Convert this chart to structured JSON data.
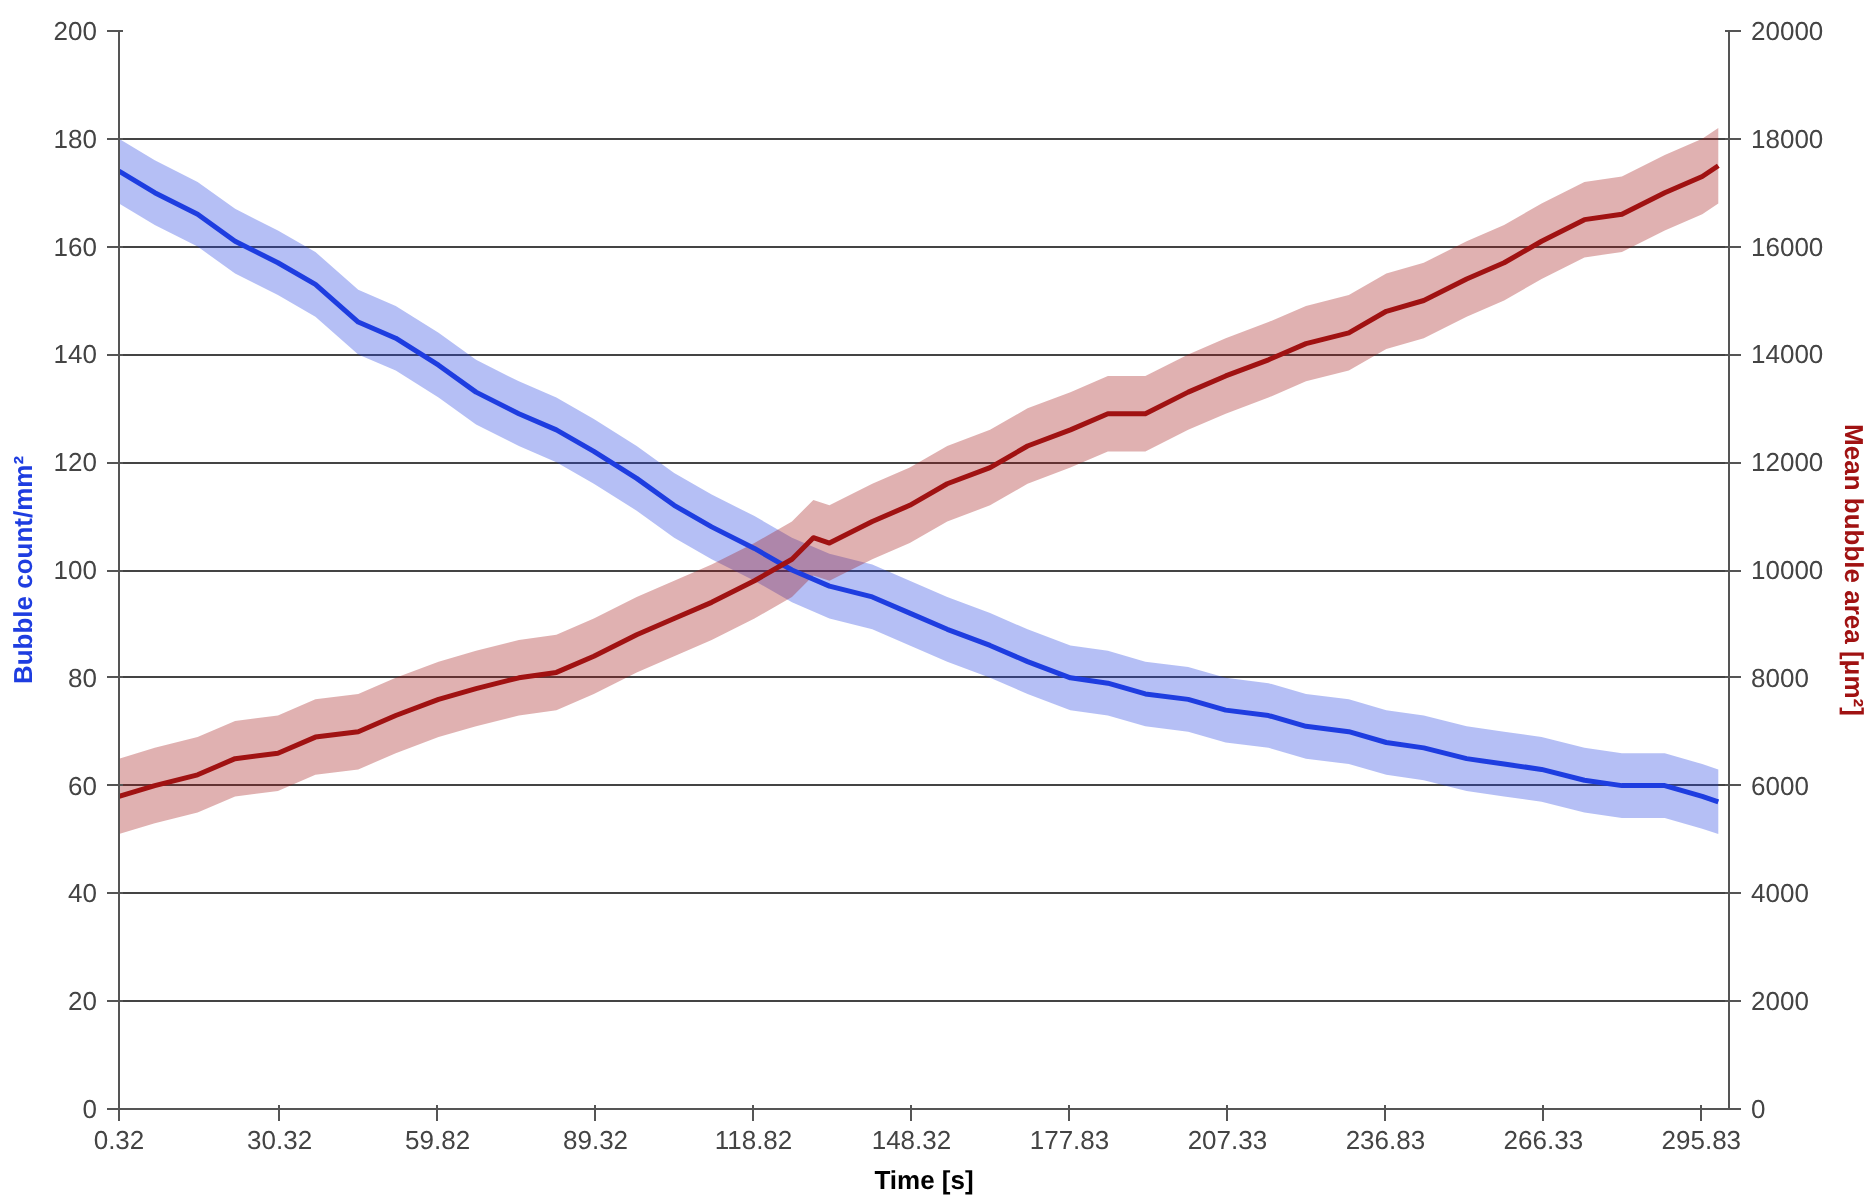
{
  "chart_data": {
    "type": "line",
    "xlabel": "Time [s]",
    "ylabel": "Bubble count/mm²",
    "y2label": "Mean bubble area [μm²]",
    "xlim": [
      0.32,
      301
    ],
    "xticks": [
      0.32,
      30.32,
      59.82,
      89.32,
      118.82,
      148.32,
      177.83,
      207.33,
      236.83,
      266.33,
      295.83
    ],
    "ylim": [
      0,
      200
    ],
    "yticks": [
      0,
      20,
      40,
      60,
      80,
      100,
      120,
      140,
      160,
      180,
      200
    ],
    "y2lim": [
      0,
      20000
    ],
    "y2ticks": [
      0,
      2000,
      4000,
      6000,
      8000,
      10000,
      12000,
      14000,
      16000,
      18000,
      20000
    ],
    "grid": "y",
    "marker": "none",
    "line_style": "solid",
    "series": [
      {
        "color": "#1e3de0",
        "axis": "y",
        "x": [
          0.32,
          7,
          15,
          22,
          30,
          37,
          45,
          52,
          60,
          67,
          75,
          82,
          89,
          97,
          104,
          111,
          119,
          126,
          133,
          141,
          148,
          155,
          163,
          170,
          178,
          185,
          192,
          200,
          207,
          215,
          222,
          230,
          237,
          244,
          252,
          259,
          266,
          274,
          281,
          289,
          296,
          299
        ],
        "values": [
          174,
          170,
          166,
          161,
          157,
          153,
          146,
          143,
          138,
          133,
          129,
          126,
          122,
          117,
          112,
          108,
          104,
          100,
          97,
          95,
          92,
          89,
          86,
          83,
          80,
          79,
          77,
          76,
          74,
          73,
          71,
          70,
          68,
          67,
          65,
          64,
          63,
          61,
          60,
          60,
          58,
          57
        ],
        "lower": [
          168,
          164,
          160,
          155,
          151,
          147,
          140,
          137,
          132,
          127,
          123,
          120,
          116,
          111,
          106,
          102,
          98,
          94,
          91,
          89,
          86,
          83,
          80,
          77,
          74,
          73,
          71,
          70,
          68,
          67,
          65,
          64,
          62,
          61,
          59,
          58,
          57,
          55,
          54,
          54,
          52,
          51
        ],
        "upper": [
          180,
          176,
          172,
          167,
          163,
          159,
          152,
          149,
          144,
          139,
          135,
          132,
          128,
          123,
          118,
          114,
          110,
          106,
          103,
          101,
          98,
          95,
          92,
          89,
          86,
          85,
          83,
          82,
          80,
          79,
          77,
          76,
          74,
          73,
          71,
          70,
          69,
          67,
          66,
          66,
          64,
          63
        ]
      },
      {
        "color": "#a01212",
        "axis": "y2",
        "x": [
          0.32,
          7,
          15,
          22,
          30,
          37,
          45,
          52,
          60,
          67,
          75,
          82,
          89,
          97,
          104,
          111,
          119,
          126,
          130,
          133,
          141,
          148,
          155,
          163,
          170,
          178,
          185,
          192,
          200,
          207,
          215,
          222,
          230,
          237,
          244,
          252,
          259,
          266,
          274,
          281,
          289,
          296,
          299
        ],
        "values": [
          5800,
          6000,
          6200,
          6500,
          6600,
          6900,
          7000,
          7300,
          7600,
          7800,
          8000,
          8100,
          8400,
          8800,
          9100,
          9400,
          9800,
          10200,
          10600,
          10500,
          10900,
          11200,
          11600,
          11900,
          12300,
          12600,
          12900,
          12900,
          13300,
          13600,
          13900,
          14200,
          14400,
          14800,
          15000,
          15400,
          15700,
          16100,
          16500,
          16600,
          17000,
          17300,
          17500
        ],
        "lower": [
          5100,
          5300,
          5500,
          5800,
          5900,
          6200,
          6300,
          6600,
          6900,
          7100,
          7300,
          7400,
          7700,
          8100,
          8400,
          8700,
          9100,
          9500,
          9900,
          9800,
          10200,
          10500,
          10900,
          11200,
          11600,
          11900,
          12200,
          12200,
          12600,
          12900,
          13200,
          13500,
          13700,
          14100,
          14300,
          14700,
          15000,
          15400,
          15800,
          15900,
          16300,
          16600,
          16800
        ],
        "upper": [
          6500,
          6700,
          6900,
          7200,
          7300,
          7600,
          7700,
          8000,
          8300,
          8500,
          8700,
          8800,
          9100,
          9500,
          9800,
          10100,
          10500,
          10900,
          11300,
          11200,
          11600,
          11900,
          12300,
          12600,
          13000,
          13300,
          13600,
          13600,
          14000,
          14300,
          14600,
          14900,
          15100,
          15500,
          15700,
          16100,
          16400,
          16800,
          17200,
          17300,
          17700,
          18000,
          18200
        ]
      }
    ]
  }
}
